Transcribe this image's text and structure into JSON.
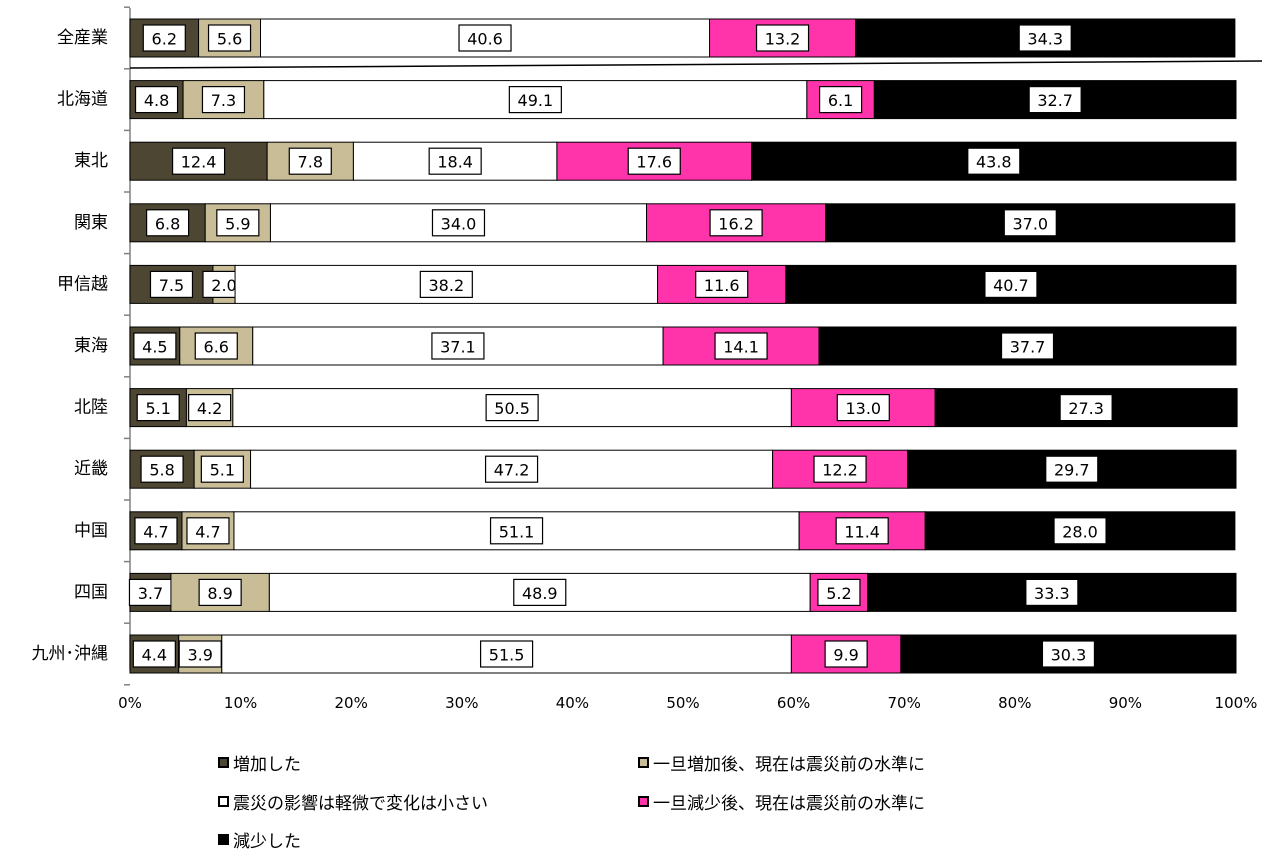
{
  "chart_data": {
    "type": "bar",
    "orientation": "horizontal",
    "stacked": "percent",
    "categories": [
      "全産業",
      "北海道",
      "東北",
      "関東",
      "甲信越",
      "東海",
      "北陸",
      "近畿",
      "中国",
      "四国",
      "九州･沖縄"
    ],
    "series": [
      {
        "name": "増加した",
        "color": "#4d4632",
        "values": [
          6.2,
          4.8,
          12.4,
          6.8,
          7.5,
          4.5,
          5.1,
          5.8,
          4.7,
          3.7,
          4.4
        ]
      },
      {
        "name": "一旦増加後、現在は震災前の水準に",
        "color": "#c8bd97",
        "values": [
          5.6,
          7.3,
          7.8,
          5.9,
          2.0,
          6.6,
          4.2,
          5.1,
          4.7,
          8.9,
          3.9
        ]
      },
      {
        "name": "震災の影響は軽微で変化は小さい",
        "color": "#ffffff",
        "values": [
          40.6,
          49.1,
          18.4,
          34.0,
          38.2,
          37.1,
          50.5,
          47.2,
          51.1,
          48.9,
          51.5
        ]
      },
      {
        "name": "一旦減少後、現在は震災前の水準に",
        "color": "#ff33aa",
        "values": [
          13.2,
          6.1,
          17.6,
          16.2,
          11.6,
          14.1,
          13.0,
          12.2,
          11.4,
          5.2,
          9.9
        ]
      },
      {
        "name": "減少した",
        "color": "#000000",
        "values": [
          34.3,
          32.7,
          43.8,
          37.0,
          40.7,
          37.7,
          27.3,
          29.7,
          28.0,
          33.3,
          30.3
        ]
      }
    ],
    "x_ticks": [
      "0%",
      "10%",
      "20%",
      "30%",
      "40%",
      "50%",
      "60%",
      "70%",
      "80%",
      "90%",
      "100%"
    ],
    "xlim": [
      0,
      100
    ],
    "grid": false,
    "legend_position": "bottom"
  }
}
